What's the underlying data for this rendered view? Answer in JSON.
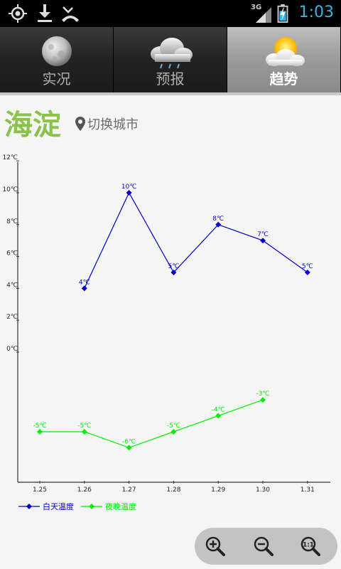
{
  "status_bar": {
    "time": "1:03",
    "network": "3G",
    "left_icons": [
      "gps-icon",
      "download-icon",
      "missed-call-icon"
    ]
  },
  "tabs": [
    {
      "label": "实况",
      "icon": "moon-icon",
      "active": false
    },
    {
      "label": "预报",
      "icon": "rain-cloud-icon",
      "active": false
    },
    {
      "label": "趋势",
      "icon": "sun-cloud-icon",
      "active": true
    }
  ],
  "header": {
    "city": "海淀",
    "switch_label": "切换城市"
  },
  "colors": {
    "city": "#8bc34a",
    "day_series": "#0000cc",
    "night_series": "#00ee00",
    "time_blue": "#33b5e5"
  },
  "chart_data": {
    "type": "line",
    "categories": [
      "1.25",
      "1.26",
      "1.27",
      "1.28",
      "1.29",
      "1.30",
      "1.31"
    ],
    "y_ticks": [
      "12℃",
      "10℃",
      "8℃",
      "6℃",
      "4℃",
      "2℃",
      "0℃"
    ],
    "series": [
      {
        "name": "白天温度",
        "color": "#0000cc",
        "values": [
          null,
          4,
          10,
          5,
          8,
          7,
          5
        ],
        "labels": [
          null,
          "4℃",
          "10℃",
          "5℃",
          "8℃",
          "7℃",
          "5℃"
        ]
      },
      {
        "name": "夜晚温度",
        "color": "#00ee00",
        "values": [
          -5,
          -5,
          -6,
          -5,
          -4,
          -3,
          null
        ],
        "labels": [
          "-5℃",
          "-5℃",
          "-6℃",
          "-5℃",
          "-4℃",
          "-3℃",
          null
        ]
      }
    ],
    "legend_position": "bottom-left",
    "grid": false
  },
  "zoom": {
    "buttons": [
      "zoom-in-icon",
      "zoom-out-icon",
      "zoom-reset-icon"
    ]
  }
}
